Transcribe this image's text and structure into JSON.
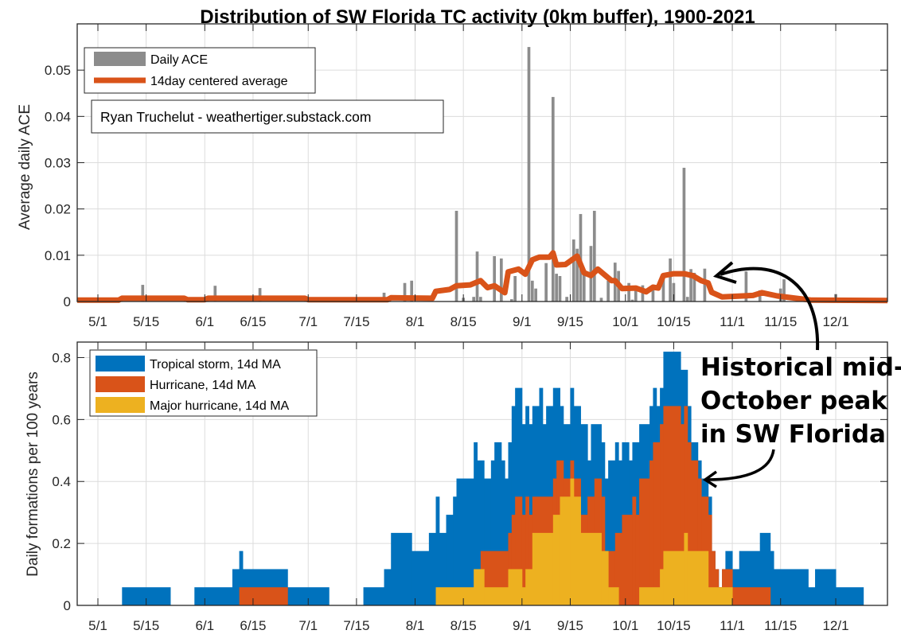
{
  "title": "Distribution of SW Florida TC activity (0km buffer), 1900-2021",
  "credit": "Ryan Truchelut - weathertiger.substack.com",
  "annotation": [
    "Historical mid-",
    "October peak",
    "in SW Florida"
  ],
  "colors": {
    "bar": "#8c8c8c",
    "avg": "#d95319",
    "ts": "#0072bd",
    "hu": "#d95319",
    "mh": "#edb120"
  },
  "chart_data": [
    {
      "type": "bar",
      "title": "Distribution of SW Florida TC activity (0km buffer), 1900-2021",
      "ylabel": "Average daily ACE",
      "x_unit": "days since 5/1",
      "xlim": [
        -6,
        229
      ],
      "ylim": [
        0,
        0.06
      ],
      "yticks": [
        0,
        0.01,
        0.02,
        0.03,
        0.04,
        0.05
      ],
      "ytick_labels": [
        "0",
        "0.01",
        "0.02",
        "0.03",
        "0.04",
        "0.05"
      ],
      "xticks": [
        {
          "label": "5/1",
          "day": 0
        },
        {
          "label": "5/15",
          "day": 14
        },
        {
          "label": "6/1",
          "day": 31
        },
        {
          "label": "6/15",
          "day": 45
        },
        {
          "label": "7/1",
          "day": 61
        },
        {
          "label": "7/15",
          "day": 75
        },
        {
          "label": "8/1",
          "day": 92
        },
        {
          "label": "8/15",
          "day": 106
        },
        {
          "label": "9/1",
          "day": 123
        },
        {
          "label": "9/15",
          "day": 137
        },
        {
          "label": "10/1",
          "day": 153
        },
        {
          "label": "10/15",
          "day": 167
        },
        {
          "label": "11/1",
          "day": 184
        },
        {
          "label": "11/15",
          "day": 198
        },
        {
          "label": "12/1",
          "day": 214
        }
      ],
      "grid": true,
      "legend": {
        "position": "top-left",
        "entries": [
          "Daily ACE",
          "14day centered average"
        ]
      },
      "daily_ace": [
        [
          13,
          0.0036
        ],
        [
          34,
          0.0034
        ],
        [
          47,
          0.0029
        ],
        [
          83,
          0.0019
        ],
        [
          89,
          0.004
        ],
        [
          91,
          0.0045
        ],
        [
          104,
          0.0196
        ],
        [
          106,
          0.0008
        ],
        [
          109,
          0.001
        ],
        [
          110,
          0.0108
        ],
        [
          111,
          0.001
        ],
        [
          115,
          0.0098
        ],
        [
          117,
          0.0093
        ],
        [
          120,
          0.0005
        ],
        [
          121,
          0.0055
        ],
        [
          125,
          0.055
        ],
        [
          126,
          0.0045
        ],
        [
          127,
          0.0028
        ],
        [
          130,
          0.0083
        ],
        [
          132,
          0.0442
        ],
        [
          133,
          0.006
        ],
        [
          134,
          0.0055
        ],
        [
          136,
          0.001
        ],
        [
          138,
          0.0134
        ],
        [
          139,
          0.0114
        ],
        [
          140,
          0.0189
        ],
        [
          141,
          0.006
        ],
        [
          143,
          0.012
        ],
        [
          144,
          0.0196
        ],
        [
          146,
          0.0008
        ],
        [
          148,
          0.0045
        ],
        [
          150,
          0.0084
        ],
        [
          151,
          0.0066
        ],
        [
          154,
          0.004
        ],
        [
          155,
          0.0004
        ],
        [
          156,
          0.0025
        ],
        [
          158,
          0.0035
        ],
        [
          161,
          0.0025
        ],
        [
          164,
          0.006
        ],
        [
          166,
          0.0093
        ],
        [
          167,
          0.004
        ],
        [
          170,
          0.0289
        ],
        [
          171,
          0.001
        ],
        [
          172,
          0.007
        ],
        [
          173,
          0.0062
        ],
        [
          176,
          0.0071
        ],
        [
          188,
          0.0065
        ],
        [
          192,
          0.0024
        ],
        [
          198,
          0.0028
        ],
        [
          199,
          0.0048
        ],
        [
          214,
          0.0016
        ]
      ],
      "avg_14day": [
        [
          -6,
          0.0003
        ],
        [
          6,
          0.0003
        ],
        [
          7,
          0.0007
        ],
        [
          25,
          0.0007
        ],
        [
          26,
          0.0004
        ],
        [
          31,
          0.0004
        ],
        [
          32,
          0.0007
        ],
        [
          60,
          0.0007
        ],
        [
          61,
          0.0004
        ],
        [
          84,
          0.0004
        ],
        [
          85,
          0.0008
        ],
        [
          97,
          0.0007
        ],
        [
          98,
          0.0022
        ],
        [
          102,
          0.0026
        ],
        [
          104,
          0.0034
        ],
        [
          108,
          0.0036
        ],
        [
          111,
          0.0045
        ],
        [
          113,
          0.003
        ],
        [
          115,
          0.0034
        ],
        [
          118,
          0.0019
        ],
        [
          119,
          0.0064
        ],
        [
          122,
          0.007
        ],
        [
          124,
          0.0059
        ],
        [
          126,
          0.009
        ],
        [
          128,
          0.0096
        ],
        [
          131,
          0.0096
        ],
        [
          132,
          0.0105
        ],
        [
          133,
          0.0079
        ],
        [
          135.6,
          0.008
        ],
        [
          139,
          0.0098
        ],
        [
          141,
          0.0062
        ],
        [
          143,
          0.0056
        ],
        [
          145,
          0.007
        ],
        [
          149,
          0.0045
        ],
        [
          150,
          0.0045
        ],
        [
          152,
          0.0028
        ],
        [
          156,
          0.0029
        ],
        [
          159,
          0.0021
        ],
        [
          161,
          0.0031
        ],
        [
          162.5,
          0.0029
        ],
        [
          164,
          0.0056
        ],
        [
          167,
          0.006
        ],
        [
          170,
          0.006
        ],
        [
          172.5,
          0.0056
        ],
        [
          175,
          0.0045
        ],
        [
          177,
          0.004
        ],
        [
          178,
          0.002
        ],
        [
          181,
          0.001
        ],
        [
          184,
          0.0011
        ],
        [
          190,
          0.0013
        ],
        [
          192.6,
          0.0019
        ],
        [
          197,
          0.0012
        ],
        [
          207,
          0.0003
        ],
        [
          229,
          0.0002
        ]
      ]
    },
    {
      "type": "area",
      "ylabel": "Daily formations per 100 years",
      "x_unit": "days since 5/1",
      "xlim": [
        -6,
        229
      ],
      "ylim": [
        0,
        0.85
      ],
      "yticks": [
        0,
        0.2,
        0.4,
        0.6,
        0.8
      ],
      "ytick_labels": [
        "0",
        "0.2",
        "0.4",
        "0.6",
        "0.8"
      ],
      "grid": true,
      "legend": {
        "position": "top-left"
      },
      "step": 0.0585,
      "run_format": "[from_day, to_day, value_in_steps]",
      "series": [
        {
          "name": "Tropical storm, 14d MA",
          "color_key": "ts",
          "runs": [
            [
              7,
              21,
              1
            ],
            [
              28,
              39,
              1
            ],
            [
              39,
              41,
              2
            ],
            [
              41,
              42,
              3
            ],
            [
              42,
              55,
              2
            ],
            [
              55,
              67,
              1
            ],
            [
              77,
              83,
              1
            ],
            [
              83,
              85,
              2
            ],
            [
              85,
              91,
              4
            ],
            [
              91,
              96,
              3
            ],
            [
              96,
              98,
              4
            ],
            [
              98,
              99,
              6
            ],
            [
              99,
              101,
              4
            ],
            [
              101,
              103,
              5
            ],
            [
              103,
              104,
              6
            ],
            [
              104,
              109,
              7
            ],
            [
              109,
              110,
              9
            ],
            [
              110,
              112,
              8
            ],
            [
              112,
              114,
              7
            ],
            [
              114,
              115,
              8
            ],
            [
              115,
              117,
              9
            ],
            [
              117,
              118,
              8
            ],
            [
              118,
              119,
              7
            ],
            [
              119,
              120,
              9
            ],
            [
              120,
              121,
              11
            ],
            [
              121,
              123,
              12
            ],
            [
              123,
              124,
              10
            ],
            [
              124,
              125,
              11
            ],
            [
              125,
              126,
              10
            ],
            [
              126,
              128,
              11
            ],
            [
              128,
              129,
              12
            ],
            [
              129,
              130,
              10
            ],
            [
              130,
              132,
              11
            ],
            [
              132,
              134,
              12
            ],
            [
              134,
              135,
              11
            ],
            [
              135,
              137,
              10
            ],
            [
              137,
              138,
              12
            ],
            [
              138,
              140,
              11
            ],
            [
              140,
              142,
              10
            ],
            [
              142,
              143,
              8
            ],
            [
              143,
              146,
              10
            ],
            [
              146,
              147,
              9
            ],
            [
              147,
              148,
              7
            ],
            [
              148,
              150,
              8
            ],
            [
              150,
              151,
              9
            ],
            [
              151,
              152,
              8
            ],
            [
              152,
              154,
              9
            ],
            [
              154,
              155,
              8
            ],
            [
              155,
              157,
              9
            ],
            [
              157,
              160,
              10
            ],
            [
              160,
              161,
              11
            ],
            [
              161,
              162,
              12
            ],
            [
              162,
              163,
              11
            ],
            [
              163,
              164,
              12
            ],
            [
              164,
              169,
              14
            ],
            [
              169,
              171,
              13
            ],
            [
              171,
              172,
              11
            ],
            [
              172,
              174,
              9
            ],
            [
              174,
              175,
              8
            ],
            [
              175,
              177,
              7
            ],
            [
              177,
              178,
              6
            ],
            [
              178,
              179,
              3
            ],
            [
              179,
              180,
              2
            ],
            [
              180,
              181,
              1
            ],
            [
              181,
              182,
              2
            ],
            [
              182,
              184,
              3
            ],
            [
              184,
              186,
              2
            ],
            [
              186,
              192,
              3
            ],
            [
              192,
              195,
              4
            ],
            [
              195,
              196,
              3
            ],
            [
              196,
              206,
              2
            ],
            [
              206,
              208,
              1
            ],
            [
              208,
              214,
              2
            ],
            [
              214,
              222,
              1
            ]
          ]
        },
        {
          "name": "Hurricane, 14d MA",
          "color_key": "hu",
          "runs": [
            [
              41,
              55,
              1
            ],
            [
              111,
              119,
              3
            ],
            [
              119,
              120,
              4
            ],
            [
              120,
              121,
              5
            ],
            [
              121,
              123,
              6
            ],
            [
              123,
              124,
              5
            ],
            [
              124,
              125,
              6
            ],
            [
              125,
              126,
              5
            ],
            [
              126,
              132,
              6
            ],
            [
              132,
              133,
              7
            ],
            [
              133,
              135,
              8
            ],
            [
              135,
              137,
              7
            ],
            [
              137,
              138,
              8
            ],
            [
              138,
              140,
              7
            ],
            [
              140,
              142,
              5
            ],
            [
              142,
              144,
              6
            ],
            [
              144,
              146,
              7
            ],
            [
              146,
              147,
              6
            ],
            [
              147,
              150,
              3
            ],
            [
              150,
              152,
              4
            ],
            [
              152,
              155,
              5
            ],
            [
              155,
              156,
              6
            ],
            [
              156,
              157,
              5
            ],
            [
              157,
              160,
              7
            ],
            [
              160,
              161,
              8
            ],
            [
              161,
              163,
              9
            ],
            [
              163,
              164,
              10
            ],
            [
              164,
              169,
              11
            ],
            [
              169,
              170,
              10
            ],
            [
              170,
              171,
              11
            ],
            [
              171,
              172,
              9
            ],
            [
              172,
              174,
              8
            ],
            [
              174,
              175,
              7
            ],
            [
              175,
              177,
              6
            ],
            [
              177,
              178,
              5
            ],
            [
              178,
              179,
              3
            ],
            [
              179,
              180,
              2
            ],
            [
              180,
              181,
              1
            ],
            [
              181,
              184,
              2
            ],
            [
              184,
              195,
              1
            ]
          ]
        },
        {
          "name": "Major hurricane, 14d MA",
          "color_key": "mh",
          "runs": [
            [
              98,
              109,
              1
            ],
            [
              109,
              112,
              2
            ],
            [
              112,
              119,
              1
            ],
            [
              119,
              123,
              2
            ],
            [
              123,
              124,
              1
            ],
            [
              124,
              126,
              2
            ],
            [
              126,
              132,
              4
            ],
            [
              132,
              134,
              5
            ],
            [
              134,
              137,
              6
            ],
            [
              137,
              138,
              7
            ],
            [
              138,
              140,
              6
            ],
            [
              140,
              146,
              4
            ],
            [
              146,
              148,
              3
            ],
            [
              148,
              151,
              1
            ],
            [
              157,
              163,
              1
            ],
            [
              163,
              164,
              2
            ],
            [
              164,
              170,
              3
            ],
            [
              170,
              171,
              4
            ],
            [
              171,
              177,
              3
            ],
            [
              177,
              184,
              1
            ]
          ]
        }
      ]
    }
  ]
}
